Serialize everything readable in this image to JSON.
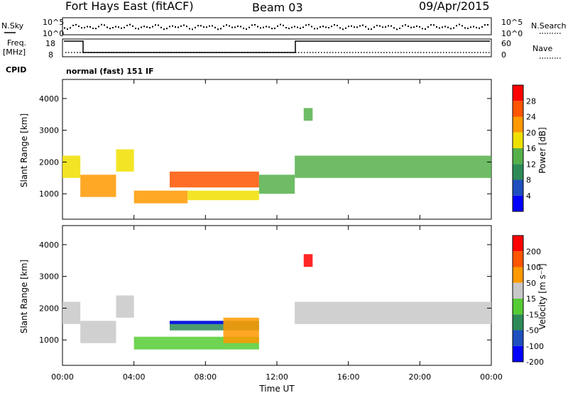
{
  "header": {
    "station": "Fort Hays East (fitACF)",
    "beam": "Beam 03",
    "date": "09/Apr/2015"
  },
  "noise_panel": {
    "left_label": "N.Sky",
    "right_label": "N.Search",
    "ticks_left": [
      "10^5",
      "10^0"
    ],
    "ticks_right": [
      "10^5",
      "10^0"
    ]
  },
  "freq_panel": {
    "left_label_line1": "Freq.",
    "left_label_line2": "[MHz]",
    "right_label": "Nave",
    "ticks_left": [
      "18",
      "8"
    ],
    "ticks_right": [
      "60",
      "0"
    ]
  },
  "cpid": {
    "label": "CPID",
    "value": "normal (fast) 151 IF"
  },
  "chart_data": [
    {
      "type": "heatmap",
      "name": "power",
      "xlabel": "Time UT",
      "ylabel": "Slant Range [km]",
      "xlim": [
        0,
        24
      ],
      "ylim": [
        200,
        4600
      ],
      "yticks": [
        1000,
        2000,
        3000,
        4000
      ],
      "colorbar": {
        "label": "Power [dB]",
        "ticks": [
          "4",
          "8",
          "12",
          "16",
          "20",
          "24",
          "28"
        ],
        "colors": [
          "#0000ff",
          "#1f4fbf",
          "#2e8b57",
          "#55b04a",
          "#f0e000",
          "#ff9900",
          "#ff5500",
          "#ff0000"
        ]
      },
      "features": [
        {
          "t0": 0.0,
          "t1": 1.0,
          "r0": 1500,
          "r1": 2200,
          "level": 4
        },
        {
          "t0": 1.0,
          "t1": 3.0,
          "r0": 900,
          "r1": 1600,
          "level": 5
        },
        {
          "t0": 3.0,
          "t1": 4.0,
          "r0": 1700,
          "r1": 2400,
          "level": 4
        },
        {
          "t0": 4.0,
          "t1": 7.0,
          "r0": 700,
          "r1": 1100,
          "level": 5
        },
        {
          "t0": 6.0,
          "t1": 11.0,
          "r0": 1200,
          "r1": 1700,
          "level": 6
        },
        {
          "t0": 7.0,
          "t1": 11.0,
          "r0": 800,
          "r1": 1100,
          "level": 4
        },
        {
          "t0": 11.0,
          "t1": 13.0,
          "r0": 1000,
          "r1": 1600,
          "level": 3
        },
        {
          "t0": 13.0,
          "t1": 24.0,
          "r0": 1500,
          "r1": 2200,
          "level": 3
        },
        {
          "t0": 13.5,
          "t1": 14.0,
          "r0": 3300,
          "r1": 3700,
          "level": 3
        }
      ]
    },
    {
      "type": "heatmap",
      "name": "velocity",
      "xlabel": "Time UT",
      "ylabel": "Slant Range [km]",
      "xlim": [
        0,
        24
      ],
      "ylim": [
        200,
        4600
      ],
      "yticks": [
        1000,
        2000,
        3000,
        4000
      ],
      "xticks": [
        "00:00",
        "04:00",
        "08:00",
        "12:00",
        "16:00",
        "20:00",
        "00:00"
      ],
      "colorbar": {
        "label": "Velocity [m s⁻¹]",
        "ticks": [
          "200",
          "100",
          "50",
          "15",
          "-15",
          "-50",
          "-100",
          "-200"
        ],
        "colors": [
          "#0000ff",
          "#1f4fbf",
          "#2e8b57",
          "#55cc33",
          "#c8c8c8",
          "#ff9900",
          "#ff5500",
          "#ff0000"
        ]
      },
      "features": [
        {
          "t0": 0.0,
          "t1": 1.0,
          "r0": 1500,
          "r1": 2200,
          "level": 4
        },
        {
          "t0": 1.0,
          "t1": 3.0,
          "r0": 900,
          "r1": 1600,
          "level": 4
        },
        {
          "t0": 3.0,
          "t1": 4.0,
          "r0": 1700,
          "r1": 2400,
          "level": 4
        },
        {
          "t0": 4.0,
          "t1": 11.0,
          "r0": 700,
          "r1": 1100,
          "level": 3
        },
        {
          "t0": 6.0,
          "t1": 11.0,
          "r0": 1300,
          "r1": 1600,
          "level": 2
        },
        {
          "t0": 6.0,
          "t1": 9.0,
          "r0": 1500,
          "r1": 1600,
          "level": 0
        },
        {
          "t0": 9.0,
          "t1": 11.0,
          "r0": 900,
          "r1": 1700,
          "level": 5
        },
        {
          "t0": 13.0,
          "t1": 24.0,
          "r0": 1500,
          "r1": 2200,
          "level": 4
        },
        {
          "t0": 13.5,
          "t1": 14.0,
          "r0": 3300,
          "r1": 3700,
          "level": 7
        }
      ]
    }
  ]
}
